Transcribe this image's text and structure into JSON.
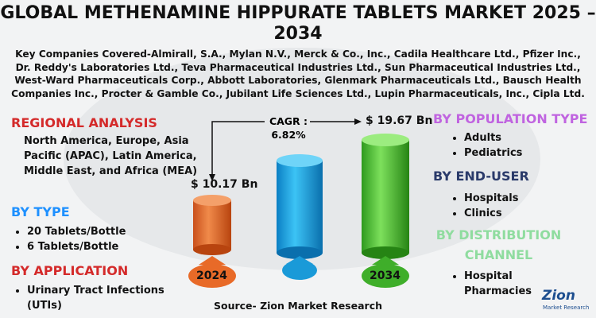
{
  "title": "GLOBAL METHENAMINE HIPPURATE TABLETS MARKET 2025 – 2034",
  "companies": "Key Companies Covered-Almirall, S.A., Mylan N.V., Merck & Co., Inc., Cadila Healthcare Ltd., Pfizer Inc., Dr. Reddy's Laboratories Ltd., Teva Pharmaceutical Industries Ltd., Sun Pharmaceutical Industries Ltd., West-Ward Pharmaceuticals Corp., Abbott Laboratories, Glenmark Pharmaceuticals Ltd., Bausch Health Companies Inc., Procter & Gamble Co., Jubilant Life Sciences Ltd., Lupin Pharmaceuticals, Inc., Cipla Ltd.",
  "regional": {
    "heading": "REGIONAL ANALYSIS",
    "text": "North America, Europe, Asia Pacific (APAC), Latin America, Middle East, and Africa (MEA)"
  },
  "by_type": {
    "heading": "BY TYPE",
    "items": [
      "20 Tablets/Bottle",
      "6 Tablets/Bottle"
    ]
  },
  "by_application": {
    "heading": "BY APPLICATION",
    "items": [
      "Urinary Tract Infections (UTIs)"
    ]
  },
  "graphic": {
    "start_value": "$ 10.17 Bn",
    "end_value": "$ 19.67 Bn",
    "cagr": "CAGR : 6.82%",
    "start_year": "2024",
    "end_year": "2034"
  },
  "by_population": {
    "heading": "BY POPULATION TYPE",
    "items": [
      "Adults",
      "Pediatrics"
    ]
  },
  "by_end_user": {
    "heading": "BY END-USER",
    "items": [
      "Hospitals",
      "Clinics"
    ]
  },
  "by_distribution": {
    "heading": "BY DISTRIBUTION CHANNEL",
    "items": [
      "Hospital Pharmacies"
    ]
  },
  "source": "Source- Zion Market Research",
  "logo": {
    "name": "Zion",
    "sub": "Market Research"
  }
}
